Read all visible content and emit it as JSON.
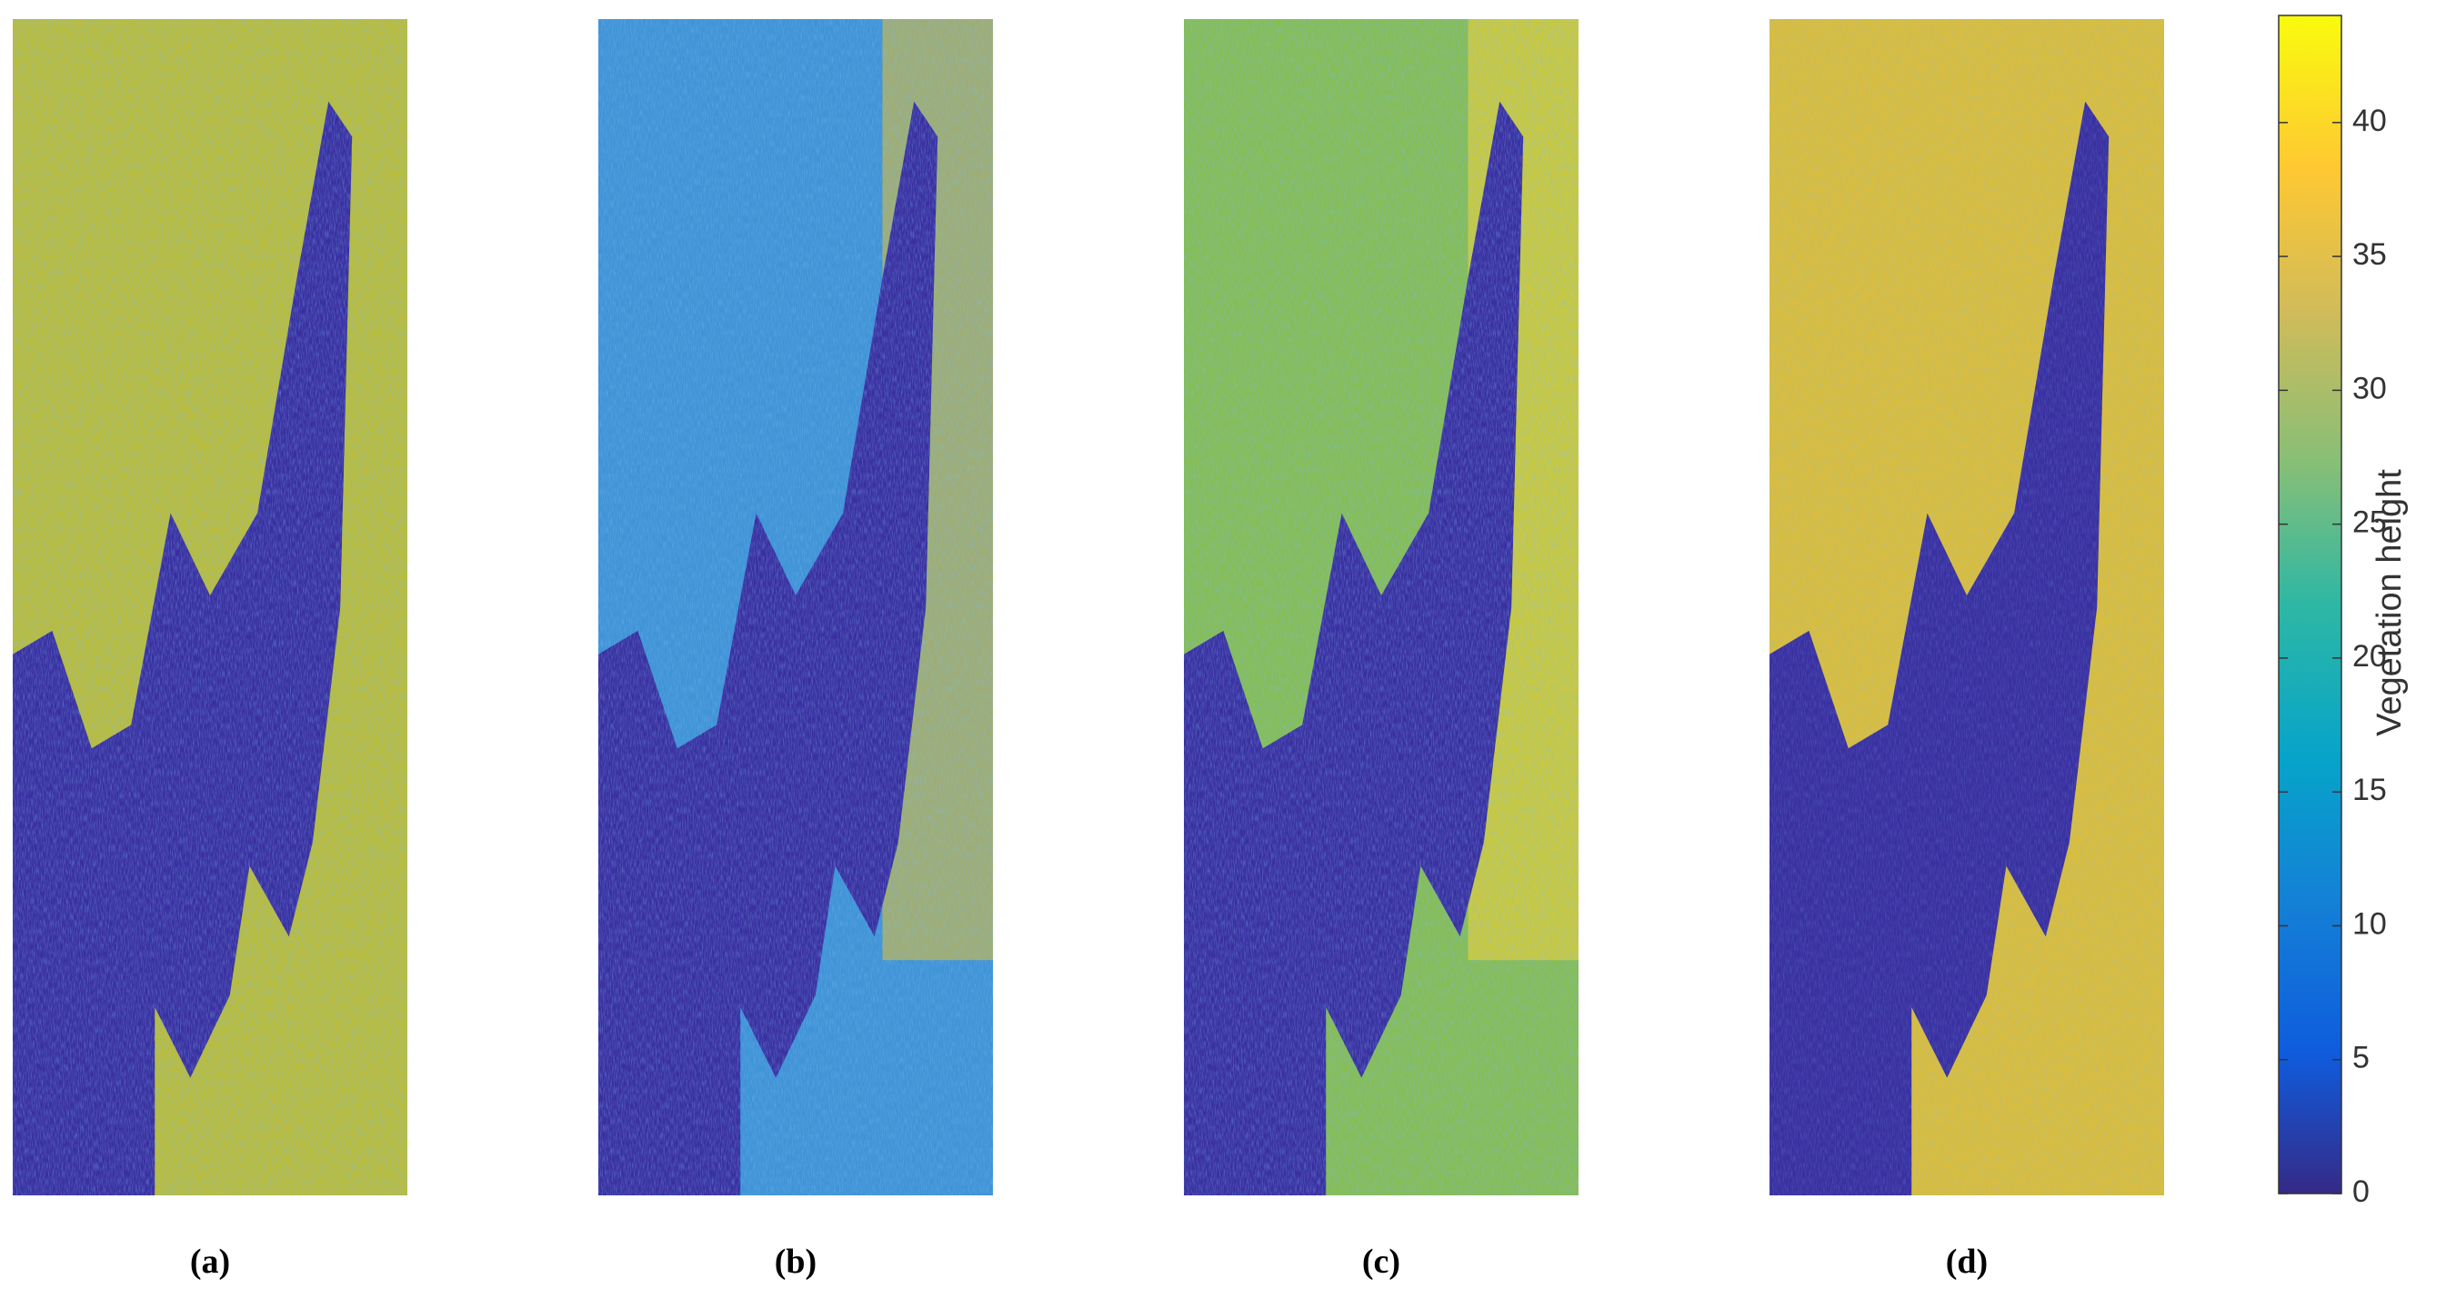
{
  "panels": [
    {
      "label": "(a)"
    },
    {
      "label": "(b)"
    },
    {
      "label": "(c)"
    },
    {
      "label": "(d)"
    }
  ],
  "colorbar": {
    "label": "Vegetation height",
    "lim": [
      0,
      44
    ],
    "ticks": [
      0,
      5,
      10,
      15,
      20,
      25,
      30,
      35,
      40
    ]
  }
}
